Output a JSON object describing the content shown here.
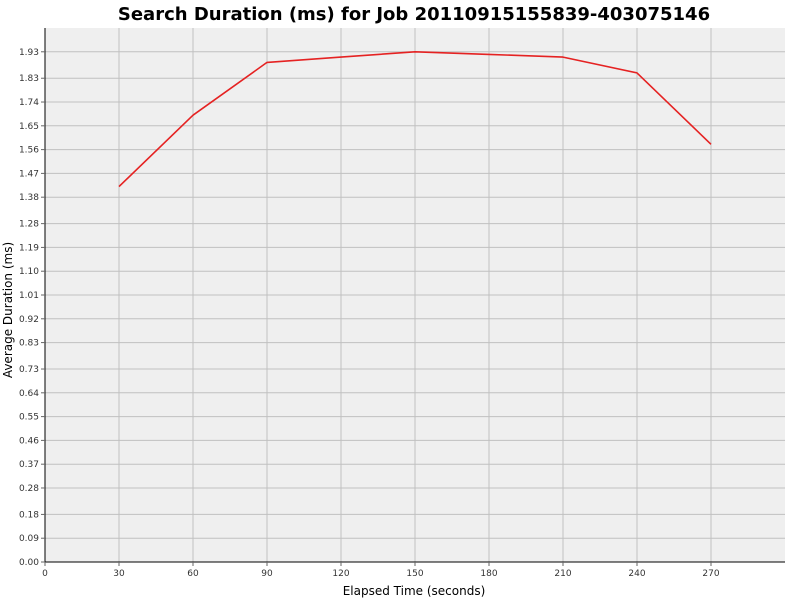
{
  "chart_data": {
    "type": "line",
    "title": "Search Duration (ms) for Job 20110915155839-403075146",
    "xlabel": "Elapsed Time (seconds)",
    "ylabel": "Average Duration (ms)",
    "xlim": [
      0,
      300
    ],
    "ylim": [
      0,
      2.02
    ],
    "x_ticks": [
      0,
      30,
      60,
      90,
      120,
      150,
      180,
      210,
      240,
      270
    ],
    "x_tick_labels": [
      "0",
      "30",
      "60",
      "90",
      "120",
      "150",
      "180",
      "210",
      "240",
      "270"
    ],
    "y_ticks": [
      0.0,
      0.09,
      0.18,
      0.28,
      0.37,
      0.46,
      0.55,
      0.64,
      0.73,
      0.83,
      0.92,
      1.01,
      1.1,
      1.19,
      1.28,
      1.38,
      1.47,
      1.56,
      1.65,
      1.74,
      1.83,
      1.93
    ],
    "y_tick_labels": [
      "0.00",
      "0.09",
      "0.18",
      "0.28",
      "0.37",
      "0.46",
      "0.55",
      "0.64",
      "0.73",
      "0.83",
      "0.92",
      "1.01",
      "1.10",
      "1.19",
      "1.28",
      "1.38",
      "1.47",
      "1.56",
      "1.65",
      "1.74",
      "1.83",
      "1.93"
    ],
    "grid": true,
    "legend": "none",
    "colors": {
      "plot_background": "#efefef",
      "grid": "#c0c0c0",
      "axis": "#000000",
      "line": "#e52222"
    },
    "series": [
      {
        "x": [
          30,
          60,
          90,
          120,
          150,
          180,
          210,
          240,
          270
        ],
        "y": [
          1.42,
          1.69,
          1.89,
          1.91,
          1.93,
          1.92,
          1.91,
          1.85,
          1.58
        ]
      }
    ]
  }
}
